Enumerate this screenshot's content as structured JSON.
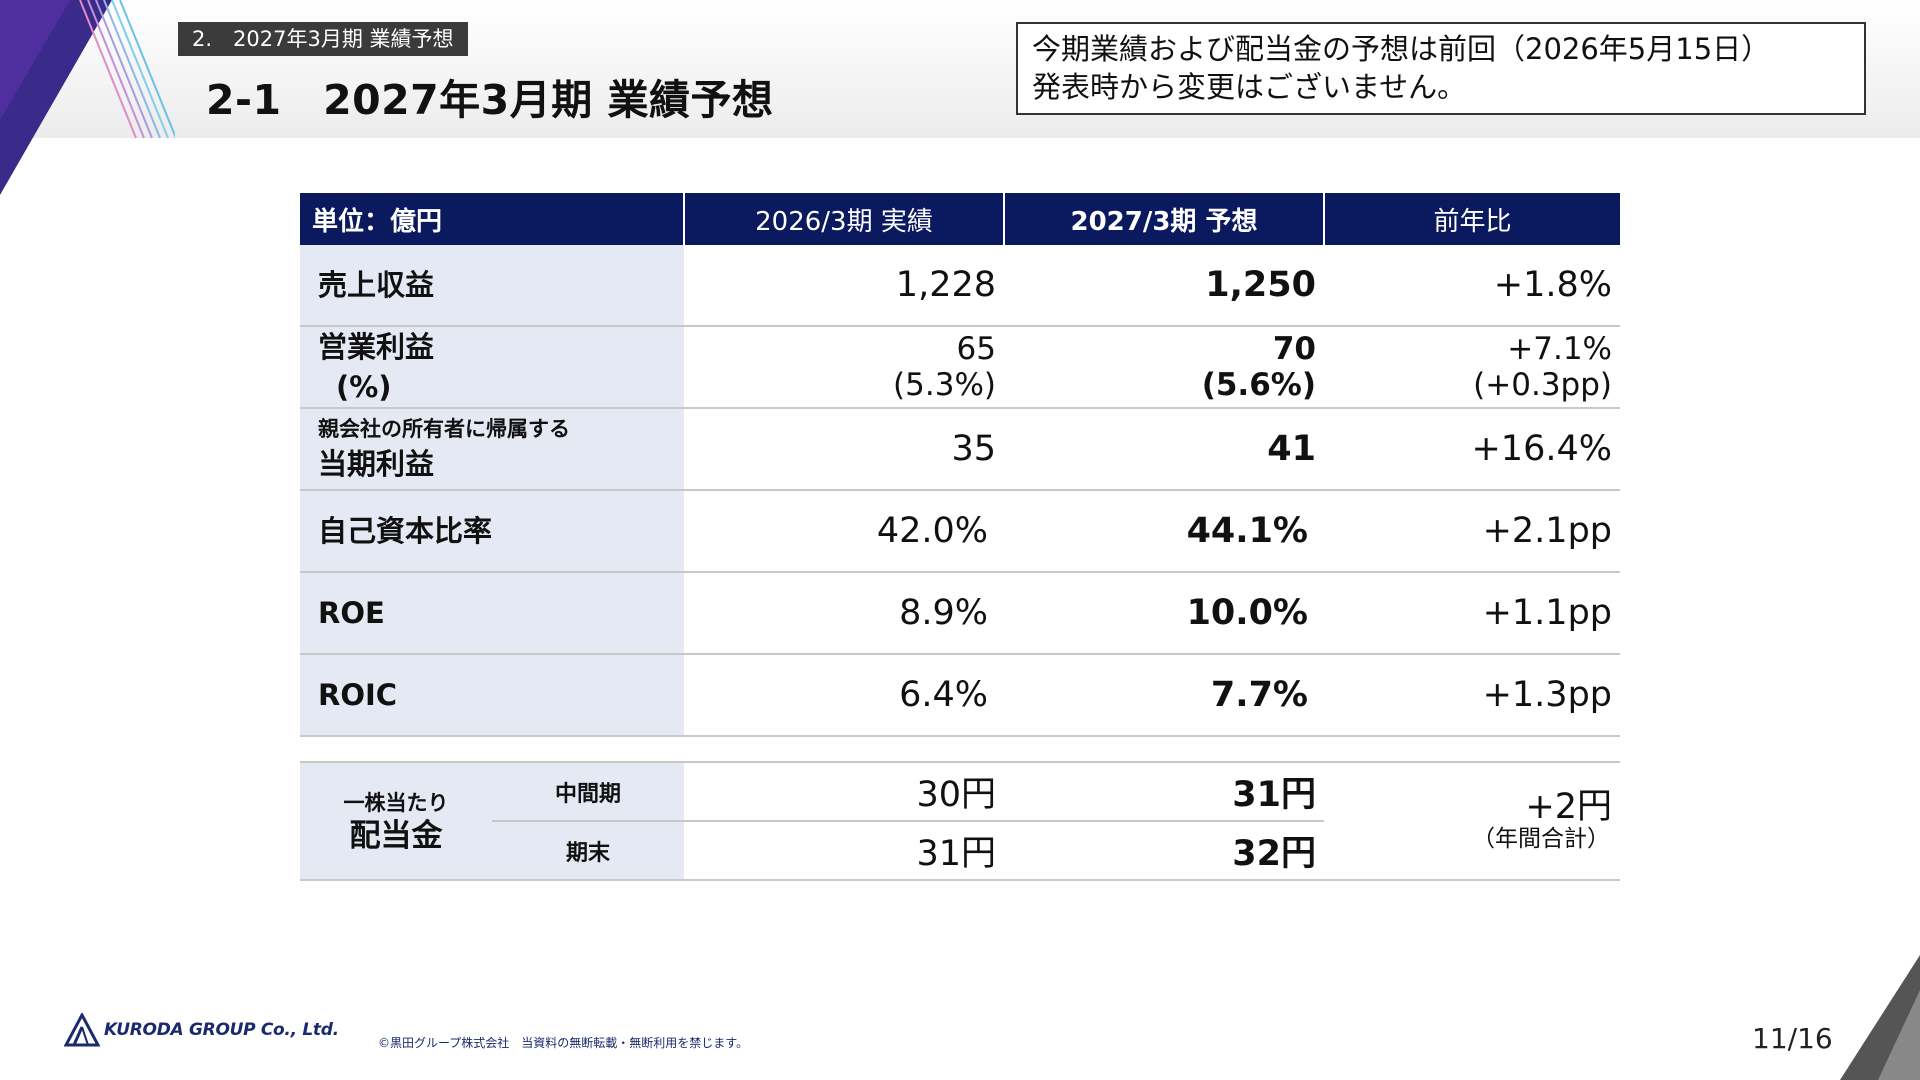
{
  "section_tag": "2.　2027年3月期 業績予想",
  "title": "2-1　2027年3月期 業績予想",
  "notice": {
    "line1": "今期業績および配当金の予想は前回（2026年5月15日）",
    "line2": "発表時から変更はございません。"
  },
  "table": {
    "headers": [
      "単位：億円",
      "2026/3期 実績",
      "2027/3期 予想",
      "前年比"
    ],
    "rows": [
      {
        "label": "売上収益",
        "actual": "1,228",
        "forecast": "1,250",
        "yoy": "+1.8%"
      },
      {
        "label": "営業利益",
        "label_sub": "(%)",
        "actual": "65",
        "actual_sub": "(5.3%)",
        "forecast": "70",
        "forecast_sub": "(5.6%)",
        "yoy": "+7.1%",
        "yoy_sub": "(+0.3pp)"
      },
      {
        "label_small": "親会社の所有者に帰属する",
        "label": "当期利益",
        "actual": "35",
        "forecast": "41",
        "yoy": "+16.4%"
      },
      {
        "label": "自己資本比率",
        "actual": "42.0%",
        "forecast": "44.1%",
        "yoy": "+2.1pp"
      },
      {
        "label": "ROE",
        "actual": "8.9%",
        "forecast": "10.0%",
        "yoy": "+1.1pp"
      },
      {
        "label": "ROIC",
        "actual": "6.4%",
        "forecast": "7.7%",
        "yoy": "+1.3pp"
      }
    ]
  },
  "dividend": {
    "label_small": "一株当たり",
    "label": "配当金",
    "rows": [
      {
        "period": "中間期",
        "actual": "30円",
        "forecast": "31円"
      },
      {
        "period": "期末",
        "actual": "31円",
        "forecast": "32円"
      }
    ],
    "yoy": "+2円",
    "yoy_note": "（年間合計）"
  },
  "footer": {
    "logo_text": "KURODA GROUP Co., Ltd.",
    "copyright": "©黒田グループ株式会社　当資料の無断転載・無断利用を禁じます。",
    "page": "11/16"
  },
  "colors": {
    "header_navy": "#0b1a5e",
    "label_bg": "#e4e9f3",
    "logo_navy": "#1b2a6e"
  }
}
